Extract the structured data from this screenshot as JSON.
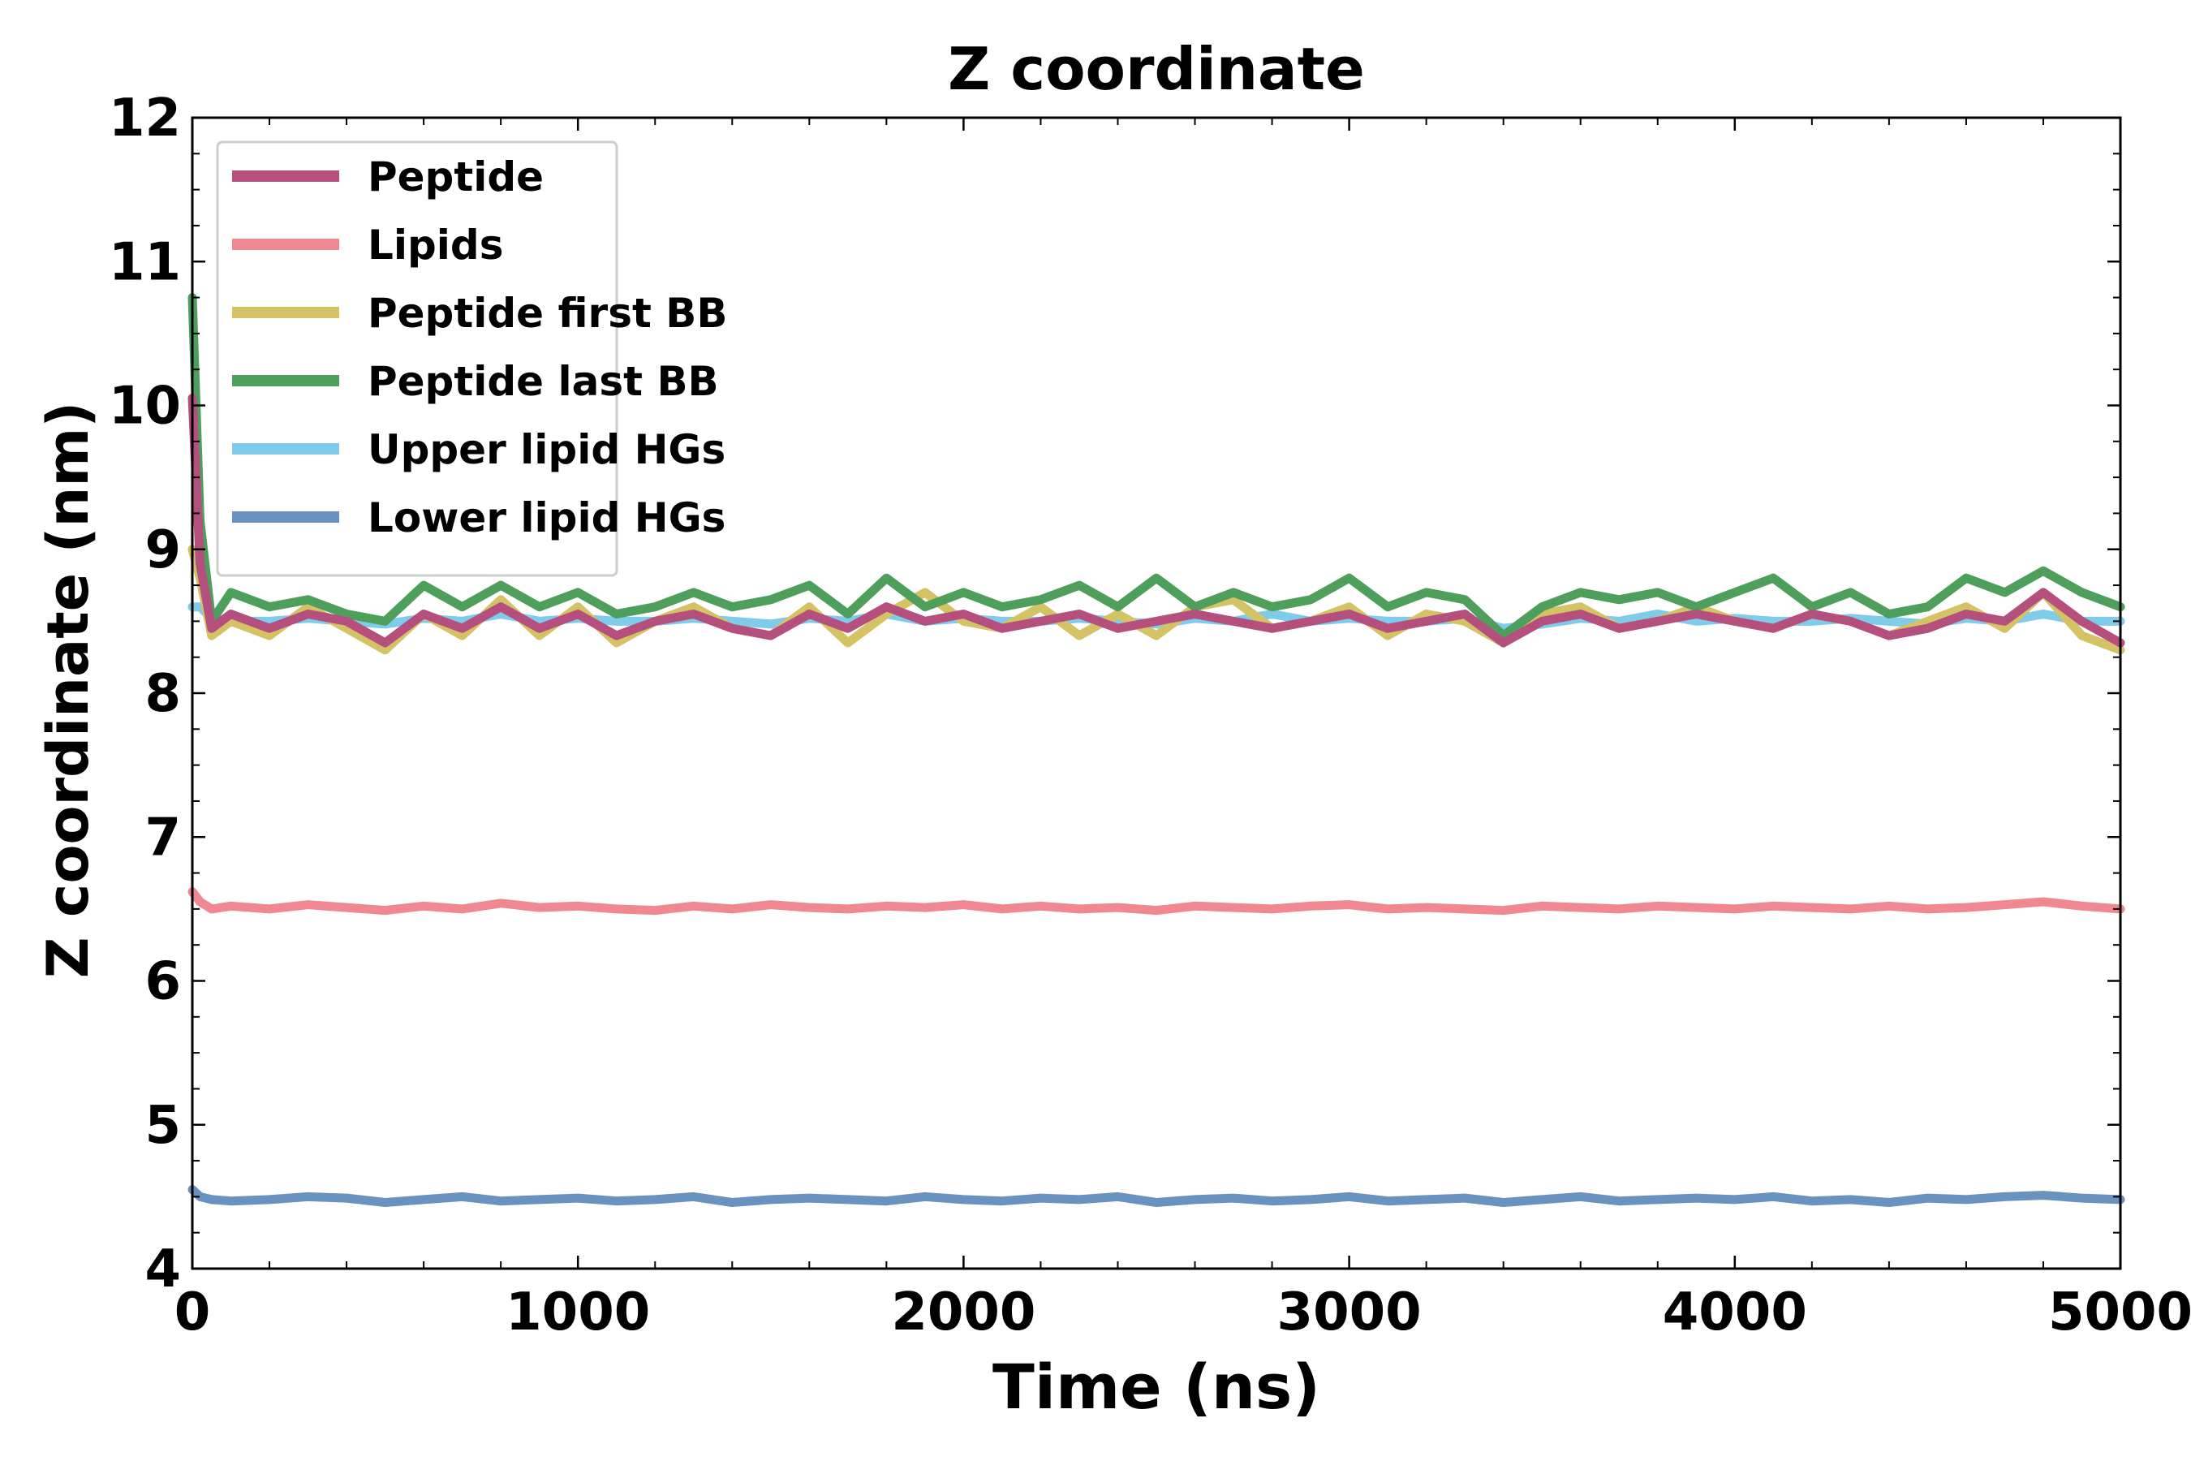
{
  "chart_data": {
    "type": "line",
    "title": "Z coordinate",
    "xlabel": "Time (ns)",
    "ylabel": "Z coordinate (nm)",
    "xlim": [
      0,
      5000
    ],
    "ylim": [
      4,
      12
    ],
    "x_ticks": [
      0,
      1000,
      2000,
      3000,
      4000,
      5000
    ],
    "x_tick_labels": [
      "0",
      "1000",
      "2000",
      "3000",
      "4000",
      "5000"
    ],
    "y_ticks": [
      4,
      5,
      6,
      7,
      8,
      9,
      10,
      11,
      12
    ],
    "y_tick_labels": [
      "4",
      "5",
      "6",
      "7",
      "8",
      "9",
      "10",
      "11",
      "12"
    ],
    "grid": false,
    "legend_position": "top-left",
    "x": [
      0,
      20,
      50,
      100,
      200,
      300,
      400,
      500,
      600,
      700,
      800,
      900,
      1000,
      1100,
      1200,
      1300,
      1400,
      1500,
      1600,
      1700,
      1800,
      1900,
      2000,
      2100,
      2200,
      2300,
      2400,
      2500,
      2600,
      2700,
      2800,
      2900,
      3000,
      3100,
      3200,
      3300,
      3400,
      3500,
      3600,
      3700,
      3800,
      3900,
      4000,
      4100,
      4200,
      4300,
      4400,
      4500,
      4600,
      4700,
      4800,
      4900,
      5000
    ],
    "series": [
      {
        "name": "Upper lipid HGs",
        "color": "#7ecbea",
        "values": [
          8.6,
          8.6,
          8.52,
          8.5,
          8.5,
          8.52,
          8.5,
          8.48,
          8.52,
          8.5,
          8.55,
          8.5,
          8.52,
          8.5,
          8.5,
          8.52,
          8.5,
          8.48,
          8.52,
          8.5,
          8.55,
          8.5,
          8.52,
          8.5,
          8.5,
          8.52,
          8.5,
          8.48,
          8.52,
          8.5,
          8.55,
          8.5,
          8.52,
          8.5,
          8.5,
          8.52,
          8.45,
          8.48,
          8.52,
          8.5,
          8.55,
          8.5,
          8.52,
          8.5,
          8.5,
          8.52,
          8.5,
          8.48,
          8.52,
          8.5,
          8.55,
          8.5,
          8.5
        ]
      },
      {
        "name": "Lower lipid HGs",
        "color": "#6a92be",
        "values": [
          4.55,
          4.5,
          4.48,
          4.47,
          4.48,
          4.5,
          4.49,
          4.46,
          4.48,
          4.5,
          4.47,
          4.48,
          4.49,
          4.47,
          4.48,
          4.5,
          4.46,
          4.48,
          4.49,
          4.48,
          4.47,
          4.5,
          4.48,
          4.47,
          4.49,
          4.48,
          4.5,
          4.46,
          4.48,
          4.49,
          4.47,
          4.48,
          4.5,
          4.47,
          4.48,
          4.49,
          4.46,
          4.48,
          4.5,
          4.47,
          4.48,
          4.49,
          4.48,
          4.5,
          4.47,
          4.48,
          4.46,
          4.49,
          4.48,
          4.5,
          4.51,
          4.49,
          4.48
        ]
      },
      {
        "name": "Lipids",
        "color": "#f08892",
        "values": [
          6.62,
          6.55,
          6.5,
          6.52,
          6.5,
          6.53,
          6.51,
          6.49,
          6.52,
          6.5,
          6.54,
          6.51,
          6.52,
          6.5,
          6.49,
          6.52,
          6.5,
          6.53,
          6.51,
          6.5,
          6.52,
          6.51,
          6.53,
          6.5,
          6.52,
          6.5,
          6.51,
          6.49,
          6.52,
          6.51,
          6.5,
          6.52,
          6.53,
          6.5,
          6.51,
          6.5,
          6.49,
          6.52,
          6.51,
          6.5,
          6.52,
          6.51,
          6.5,
          6.52,
          6.51,
          6.5,
          6.52,
          6.5,
          6.51,
          6.53,
          6.55,
          6.52,
          6.5
        ]
      },
      {
        "name": "Peptide first BB",
        "color": "#d4c365",
        "values": [
          9.0,
          8.8,
          8.4,
          8.5,
          8.4,
          8.6,
          8.45,
          8.3,
          8.55,
          8.4,
          8.65,
          8.4,
          8.6,
          8.35,
          8.5,
          8.6,
          8.45,
          8.4,
          8.6,
          8.35,
          8.55,
          8.7,
          8.5,
          8.45,
          8.6,
          8.4,
          8.55,
          8.4,
          8.6,
          8.65,
          8.45,
          8.5,
          8.6,
          8.4,
          8.55,
          8.5,
          8.35,
          8.55,
          8.6,
          8.45,
          8.5,
          8.6,
          8.5,
          8.45,
          8.55,
          8.5,
          8.4,
          8.5,
          8.6,
          8.45,
          8.7,
          8.4,
          8.3
        ]
      },
      {
        "name": "Peptide last BB",
        "color": "#4f9f5c",
        "values": [
          10.75,
          9.2,
          8.5,
          8.7,
          8.6,
          8.65,
          8.55,
          8.5,
          8.75,
          8.6,
          8.75,
          8.6,
          8.7,
          8.55,
          8.6,
          8.7,
          8.6,
          8.65,
          8.75,
          8.55,
          8.8,
          8.6,
          8.7,
          8.6,
          8.65,
          8.75,
          8.6,
          8.8,
          8.6,
          8.7,
          8.6,
          8.65,
          8.8,
          8.6,
          8.7,
          8.65,
          8.4,
          8.6,
          8.7,
          8.65,
          8.7,
          8.6,
          8.7,
          8.8,
          8.6,
          8.7,
          8.55,
          8.6,
          8.8,
          8.7,
          8.85,
          8.7,
          8.6
        ]
      },
      {
        "name": "Peptide",
        "color": "#b5507e",
        "values": [
          10.05,
          8.9,
          8.45,
          8.55,
          8.45,
          8.55,
          8.5,
          8.35,
          8.55,
          8.45,
          8.6,
          8.45,
          8.55,
          8.4,
          8.5,
          8.55,
          8.45,
          8.4,
          8.55,
          8.45,
          8.6,
          8.5,
          8.55,
          8.45,
          8.5,
          8.55,
          8.45,
          8.5,
          8.55,
          8.5,
          8.45,
          8.5,
          8.55,
          8.45,
          8.5,
          8.55,
          8.35,
          8.5,
          8.55,
          8.45,
          8.5,
          8.55,
          8.5,
          8.45,
          8.55,
          8.5,
          8.4,
          8.45,
          8.55,
          8.5,
          8.7,
          8.5,
          8.35
        ]
      }
    ],
    "legend_order": [
      "Peptide",
      "Lipids",
      "Peptide first BB",
      "Peptide last BB",
      "Upper lipid HGs",
      "Lower lipid HGs"
    ]
  }
}
